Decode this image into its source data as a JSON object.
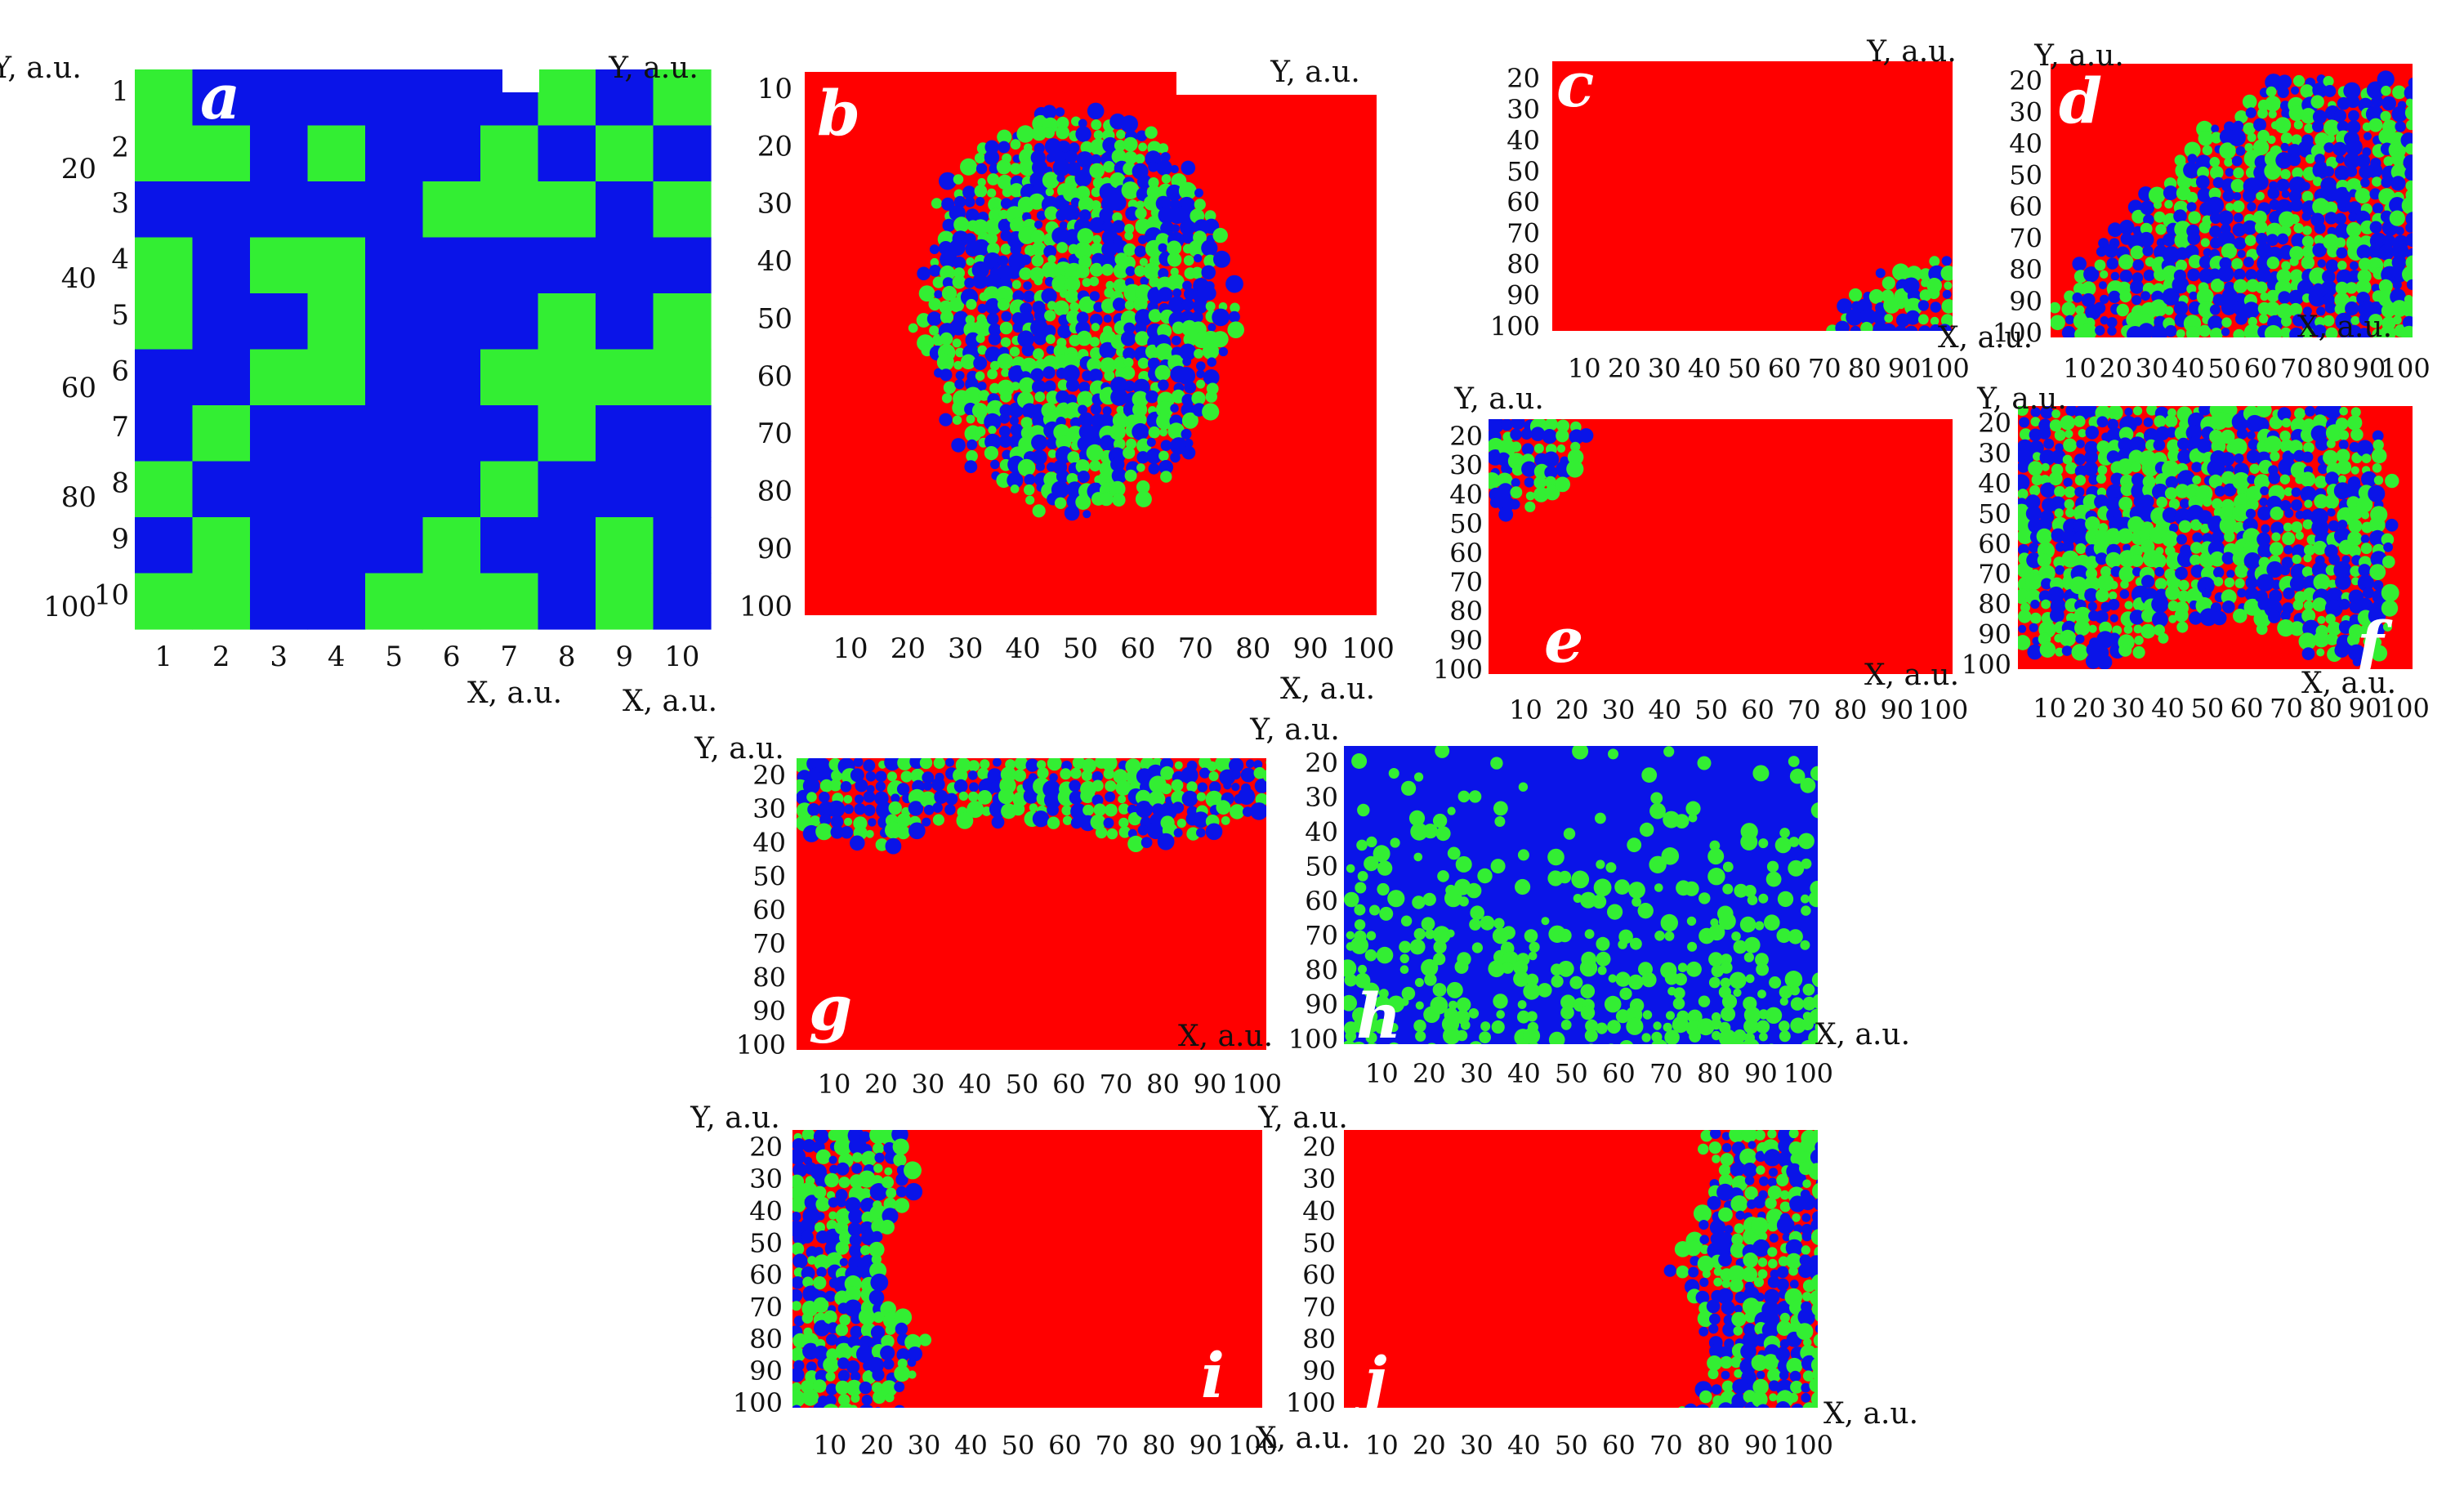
{
  "colors": {
    "red": "#ff0000",
    "green": "#33ee33",
    "blue": "#0a14e8"
  },
  "axis_labels": {
    "x": "X, a.u.",
    "y": "Y, a.u."
  },
  "chart_data": [
    {
      "panel": "a",
      "type": "heatmap",
      "x_ticks": [
        "1",
        "2",
        "3",
        "4",
        "5",
        "6",
        "7",
        "8",
        "9",
        "10"
      ],
      "y_ticks_inner": [
        "1",
        "2",
        "3",
        "4",
        "5",
        "6",
        "7",
        "8",
        "9",
        "10"
      ],
      "y_ticks_outer": [
        "20",
        "40",
        "60",
        "80",
        "100"
      ],
      "legend_colors": [
        "green",
        "blue"
      ],
      "grid_rows": [
        "GBBBBBBGBG",
        "GGBGBBGBGB",
        "BBBBBGGGBG",
        "GBGGBBBBBB",
        "GBBGBBBGBG",
        "BBGGBBGGGG",
        "BGBBBBBGBB",
        "GBBBBBGBBB",
        "BGBBBGBBGB",
        "GGBBGGGBGB"
      ]
    },
    {
      "panel": "b",
      "type": "heatmap",
      "x_ticks": [
        "10",
        "20",
        "30",
        "40",
        "50",
        "60",
        "70",
        "80",
        "90",
        "100"
      ],
      "y_ticks": [
        "10",
        "20",
        "30",
        "40",
        "50",
        "60",
        "70",
        "80",
        "90",
        "100"
      ]
    },
    {
      "panel": "c",
      "type": "heatmap",
      "x_ticks": [
        "10",
        "20",
        "30",
        "40",
        "50",
        "60",
        "70",
        "80",
        "90",
        "100"
      ],
      "y_ticks": [
        "20",
        "30",
        "40",
        "50",
        "60",
        "70",
        "80",
        "90",
        "100"
      ]
    },
    {
      "panel": "d",
      "type": "heatmap",
      "x_ticks": [
        "10",
        "20",
        "30",
        "40",
        "50",
        "60",
        "70",
        "80",
        "90",
        "100"
      ],
      "y_ticks": [
        "20",
        "30",
        "40",
        "50",
        "60",
        "70",
        "80",
        "90",
        "100"
      ]
    },
    {
      "panel": "e",
      "type": "heatmap",
      "x_ticks": [
        "10",
        "20",
        "30",
        "40",
        "50",
        "60",
        "70",
        "80",
        "90",
        "100"
      ],
      "y_ticks": [
        "20",
        "30",
        "40",
        "50",
        "60",
        "70",
        "80",
        "90",
        "100"
      ]
    },
    {
      "panel": "f",
      "type": "heatmap",
      "x_ticks": [
        "10",
        "20",
        "30",
        "40",
        "50",
        "60",
        "70",
        "80",
        "90",
        "100"
      ],
      "y_ticks": [
        "20",
        "30",
        "40",
        "50",
        "60",
        "70",
        "80",
        "90",
        "100"
      ]
    },
    {
      "panel": "g",
      "type": "heatmap",
      "x_ticks": [
        "10",
        "20",
        "30",
        "40",
        "50",
        "60",
        "70",
        "80",
        "90",
        "100"
      ],
      "y_ticks": [
        "20",
        "30",
        "40",
        "50",
        "60",
        "70",
        "80",
        "90",
        "100"
      ]
    },
    {
      "panel": "h",
      "type": "heatmap",
      "x_ticks": [
        "10",
        "20",
        "30",
        "40",
        "50",
        "60",
        "70",
        "80",
        "90",
        "100"
      ],
      "y_ticks": [
        "20",
        "30",
        "40",
        "50",
        "60",
        "70",
        "80",
        "90",
        "100"
      ]
    },
    {
      "panel": "i",
      "type": "heatmap",
      "x_ticks": [
        "10",
        "20",
        "30",
        "40",
        "50",
        "60",
        "70",
        "80",
        "90",
        "100"
      ],
      "y_ticks": [
        "20",
        "30",
        "40",
        "50",
        "60",
        "70",
        "80",
        "90",
        "100"
      ]
    },
    {
      "panel": "j",
      "type": "heatmap",
      "x_ticks": [
        "10",
        "20",
        "30",
        "40",
        "50",
        "60",
        "70",
        "80",
        "90",
        "100"
      ],
      "y_ticks": [
        "20",
        "30",
        "40",
        "50",
        "60",
        "70",
        "80",
        "90",
        "100"
      ]
    }
  ]
}
